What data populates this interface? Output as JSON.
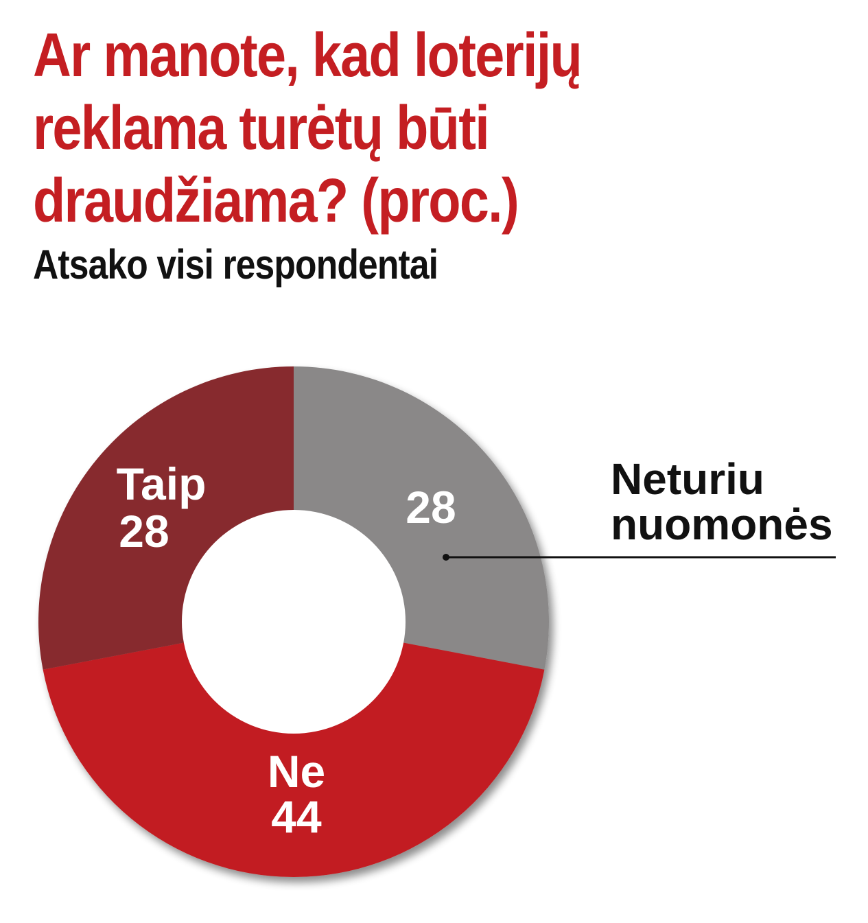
{
  "title": "Ar manote, kad loterijų\nreklama turėtų būti\ndraudžiama? (proc.)",
  "subtitle": "Atsako visi respondentai",
  "chart_data": {
    "type": "pie",
    "variant": "donut",
    "slices": [
      {
        "label": "",
        "value": 28,
        "color": "#8a8888"
      },
      {
        "label": "Ne",
        "value": 44,
        "color": "#c21e21"
      },
      {
        "label": "Taip",
        "value": 28,
        "color": "#872a2d"
      }
    ],
    "external_label": "Neturiu\nnuomonės",
    "hole_color": "#ffffff",
    "label_color": "#ffffff",
    "external_label_color": "#111111"
  }
}
